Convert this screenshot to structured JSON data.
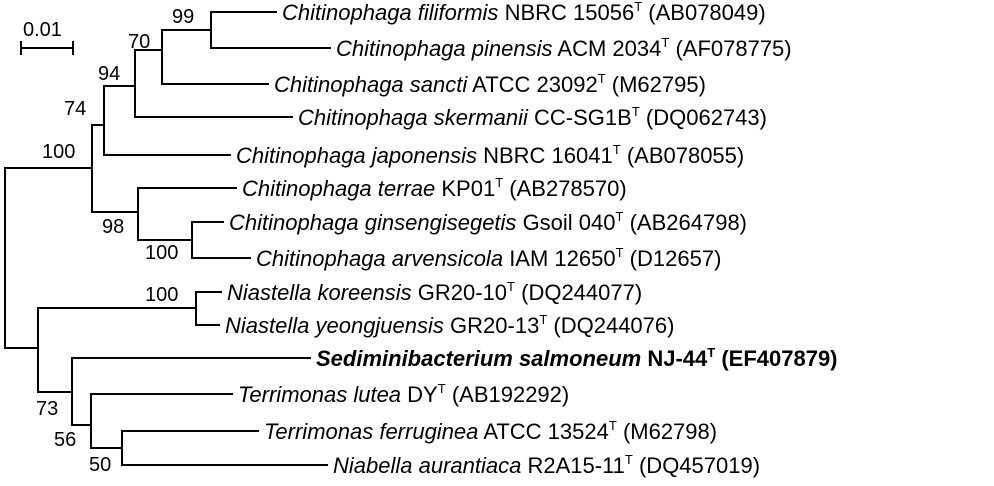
{
  "scale_bar": {
    "label": "0.01"
  },
  "taxa": [
    {
      "species": "Chitinophaga filiformis",
      "strain": "NBRC 15056",
      "type_mark": "T",
      "accession": "(AB078049)"
    },
    {
      "species": "Chitinophaga pinensis",
      "strain": "ACM 2034",
      "type_mark": "T",
      "accession": "(AF078775)"
    },
    {
      "species": "Chitinophaga sancti",
      "strain": "ATCC 23092",
      "type_mark": "T",
      "accession": "(M62795)"
    },
    {
      "species": "Chitinophaga skermanii",
      "strain": "CC-SG1B",
      "type_mark": "T",
      "accession": "(DQ062743)"
    },
    {
      "species": "Chitinophaga japonensis",
      "strain": "NBRC 16041",
      "type_mark": "T",
      "accession": "(AB078055)"
    },
    {
      "species": "Chitinophaga terrae",
      "strain": "KP01",
      "type_mark": "T",
      "accession": "(AB278570)"
    },
    {
      "species": "Chitinophaga ginsengisegetis",
      "strain": "Gsoil 040",
      "type_mark": "T",
      "accession": "(AB264798)"
    },
    {
      "species": "Chitinophaga arvensicola",
      "strain": "IAM 12650",
      "type_mark": "T",
      "accession": "(D12657)"
    },
    {
      "species": "Niastella koreensis",
      "strain": "GR20-10",
      "type_mark": "T",
      "accession": "(DQ244077)"
    },
    {
      "species": "Niastella yeongjuensis",
      "strain": "GR20-13",
      "type_mark": "T",
      "accession": "(DQ244076)"
    },
    {
      "species": "Sediminibacterium salmoneum",
      "strain": "NJ-44",
      "type_mark": "T",
      "accession": "(EF407879)"
    },
    {
      "species": "Terrimonas lutea",
      "strain": "DY",
      "type_mark": "T",
      "accession": "(AB192292)"
    },
    {
      "species": "Terrimonas ferruginea",
      "strain": "ATCC 13524",
      "type_mark": "T",
      "accession": "(M62798)"
    },
    {
      "species": "Niabella aurantiaca",
      "strain": "R2A15-11",
      "type_mark": "T",
      "accession": "(DQ457019)"
    }
  ],
  "bootstrap": {
    "b99": "99",
    "b70": "70",
    "b94": "94",
    "b74": "74",
    "b100_chitinophaga": "100",
    "b98": "98",
    "b100_ginseng_arv": "100",
    "b100_niastella": "100",
    "b73": "73",
    "b56": "56",
    "b50": "50"
  }
}
